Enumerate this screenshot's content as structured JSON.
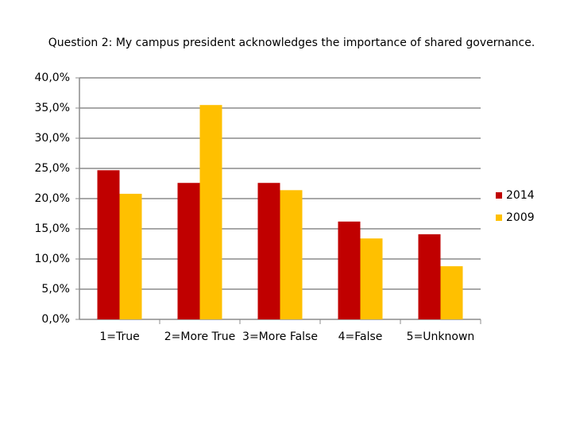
{
  "chart_data": {
    "type": "bar",
    "title": "Question 2: My campus president acknowledges the importance of shared governance.",
    "categories": [
      "1=True",
      "2=More True",
      "3=More False",
      "4=False",
      "5=Unknown"
    ],
    "series": [
      {
        "name": "2014",
        "color": "#c00000",
        "values": [
          24.7,
          22.6,
          22.6,
          16.2,
          14.1
        ]
      },
      {
        "name": "2009",
        "color": "#ffc000",
        "values": [
          20.8,
          35.5,
          21.4,
          13.4,
          8.8
        ]
      }
    ],
    "ylim": [
      0,
      40
    ],
    "yticks": [
      {
        "value": 0,
        "label": "0,0%"
      },
      {
        "value": 5,
        "label": "5,0%"
      },
      {
        "value": 10,
        "label": "10,0%"
      },
      {
        "value": 15,
        "label": "15,0%"
      },
      {
        "value": 20,
        "label": "20,0%"
      },
      {
        "value": 25,
        "label": "25,0%"
      },
      {
        "value": 30,
        "label": "30,0%"
      },
      {
        "value": 35,
        "label": "35,0%"
      },
      {
        "value": 40,
        "label": "40,0%"
      }
    ],
    "grid": true,
    "legend": "right"
  }
}
